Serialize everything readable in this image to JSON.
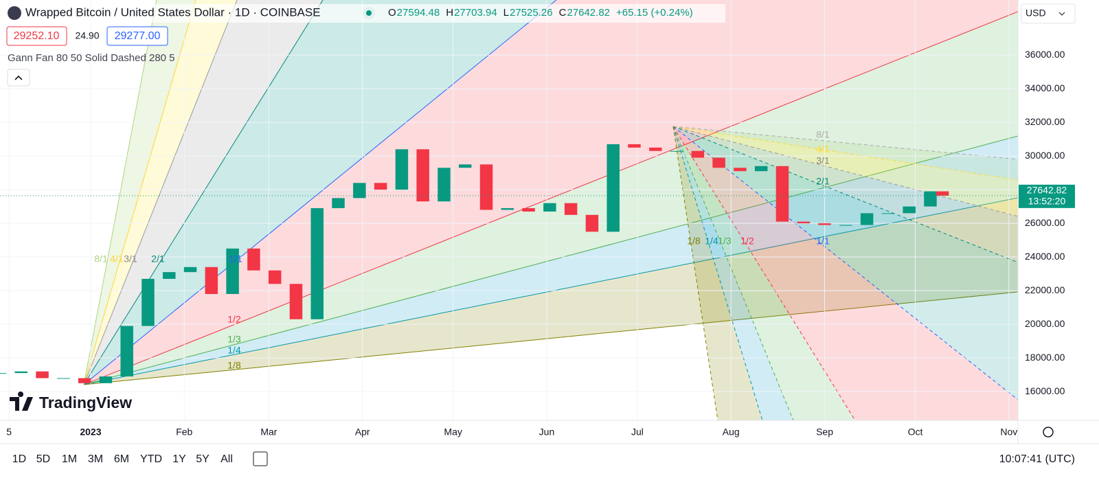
{
  "header": {
    "symbol": "Wrapped Bitcoin / United States Dollar · 1D · COINBASE",
    "ohlc": [
      {
        "label": "O",
        "value": 27594.48
      },
      {
        "label": "H",
        "value": 27703.94
      },
      {
        "label": "L",
        "value": 27525.26
      },
      {
        "label": "C",
        "value": 27642.82
      }
    ],
    "change": "+65.15 (+0.24%)",
    "sell": 29252.1,
    "spread": 24.9,
    "buy": 29277.0,
    "sell_label": "29252.10",
    "spread_label": "24.90",
    "buy_label": "29277.00",
    "currency": "USD"
  },
  "indicator": "Gann Fan 80 50 Solid Dashed 280 5",
  "logo": "TradingView",
  "fans": [
    {
      "labels": [
        "8/1",
        "4/1",
        "3/1",
        "2/1",
        "1/1",
        "1/2",
        "1/3",
        "1/4",
        "1/8"
      ]
    },
    {
      "labels": [
        "8/1",
        "4/1",
        "3/1",
        "2/1",
        "1/1",
        "1/8",
        "1/4",
        "1/3",
        "1/2"
      ]
    }
  ],
  "chart_data": {
    "type": "candlestick",
    "x": [
      "2022-12-02",
      "2022-12-09",
      "2022-12-16",
      "2022-12-23",
      "2022-12-30",
      "2023-01-06",
      "2023-01-13",
      "2023-01-20",
      "2023-01-27",
      "2023-02-03",
      "2023-02-10",
      "2023-02-17",
      "2023-02-24",
      "2023-03-03",
      "2023-03-10",
      "2023-03-17",
      "2023-03-24",
      "2023-03-31",
      "2023-04-07",
      "2023-04-14",
      "2023-04-21",
      "2023-04-28",
      "2023-05-05",
      "2023-05-12",
      "2023-05-19",
      "2023-05-26",
      "2023-06-02",
      "2023-06-09",
      "2023-06-16",
      "2023-06-23",
      "2023-06-30",
      "2023-07-07",
      "2023-07-14",
      "2023-07-21",
      "2023-07-28",
      "2023-08-04",
      "2023-08-11",
      "2023-08-18",
      "2023-08-25",
      "2023-09-01",
      "2023-09-08",
      "2023-09-15",
      "2023-09-22",
      "2023-09-29",
      "2023-10-06",
      "2023-10-10"
    ],
    "values": [
      17100,
      17200,
      16800,
      16800,
      16500,
      16900,
      19900,
      22700,
      23100,
      23400,
      21800,
      24500,
      23200,
      22400,
      20300,
      26900,
      27500,
      28400,
      28000,
      30400,
      27300,
      29300,
      29500,
      26800,
      26900,
      26700,
      27200,
      26500,
      25500,
      30700,
      30500,
      30300,
      30300,
      29900,
      29300,
      29100,
      29400,
      26100,
      26000,
      25900,
      25900,
      26600,
      26600,
      27000,
      27900,
      27642.82
    ],
    "up_color": "#089981",
    "down_color": "#f23645",
    "ylim": [
      14290,
      39270
    ],
    "yticks": [
      {
        "value": 16000,
        "label": "16000.00"
      },
      {
        "value": 18000,
        "label": "18000.00"
      },
      {
        "value": 20000,
        "label": "20000.00"
      },
      {
        "value": 22000,
        "label": "22000.00"
      },
      {
        "value": 24000,
        "label": "24000.00"
      },
      {
        "value": 26000,
        "label": "26000.00"
      },
      {
        "value": 28000,
        "label": "28000.00"
      },
      {
        "value": 30000,
        "label": "30000.00"
      },
      {
        "value": 32000,
        "label": "32000.00"
      },
      {
        "value": 34000,
        "label": "34000.00"
      },
      {
        "value": 36000,
        "label": "36000.00"
      }
    ],
    "xlim": [
      "2022-12-02",
      "2023-11-04"
    ],
    "xticks": [
      {
        "value": "2022-12-05",
        "label": "5"
      },
      {
        "value": "2023-01-01",
        "label": "2023"
      },
      {
        "value": "2023-02-01",
        "label": "Feb"
      },
      {
        "value": "2023-03-01",
        "label": "Mar"
      },
      {
        "value": "2023-04-01",
        "label": "Apr"
      },
      {
        "value": "2023-05-01",
        "label": "May"
      },
      {
        "value": "2023-06-01",
        "label": "Jun"
      },
      {
        "value": "2023-07-01",
        "label": "Jul"
      },
      {
        "value": "2023-08-01",
        "label": "Aug"
      },
      {
        "value": "2023-09-01",
        "label": "Sep"
      },
      {
        "value": "2023-10-01",
        "label": "Oct"
      },
      {
        "value": "2023-11-01",
        "label": "Nov"
      }
    ],
    "last_price": 27642.82,
    "last_price_label": "27642.82",
    "countdown": "13:52:20"
  },
  "toolbar": {
    "ranges": [
      "1D",
      "5D",
      "1M",
      "3M",
      "6M",
      "YTD",
      "1Y",
      "5Y",
      "All"
    ],
    "clock": "10:07:41 (UTC)"
  }
}
